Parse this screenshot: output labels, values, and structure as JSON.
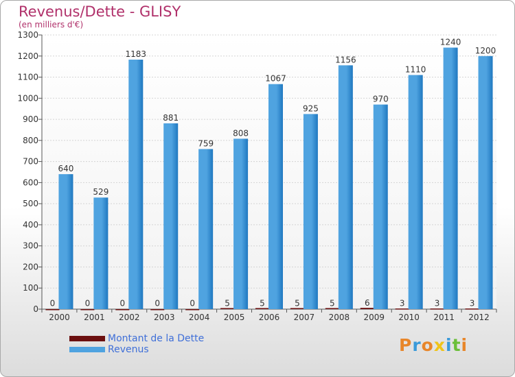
{
  "title": "Revenus/Dette - GLISY",
  "subtitle": "(en milliers d'€)",
  "brand": [
    "P",
    "r",
    "o",
    "x",
    "i",
    "t",
    "i"
  ],
  "brand_colors": [
    "#e8862a",
    "#3a9ad9",
    "#e8862a",
    "#f0c419",
    "#3a9ad9",
    "#6bbf3a",
    "#e8862a"
  ],
  "colors": {
    "debt": "#6b0f0f",
    "revenue": "#4fa3e0",
    "revenue_dark": "#1f78c0",
    "axis_text": "#333333",
    "legend_text": "#3f6fd8"
  },
  "chart_data": {
    "type": "bar",
    "title": "Revenus/Dette - GLISY",
    "subtitle": "(en milliers d'€)",
    "categories": [
      "2000",
      "2001",
      "2002",
      "2003",
      "2004",
      "2005",
      "2006",
      "2007",
      "2008",
      "2009",
      "2010",
      "2011",
      "2012"
    ],
    "series": [
      {
        "name": "Montant de la Dette",
        "values": [
          0,
          0,
          0,
          0,
          0,
          5,
          5,
          5,
          5,
          6,
          3,
          3,
          3
        ]
      },
      {
        "name": "Revenus",
        "values": [
          640,
          529,
          1183,
          881,
          759,
          808,
          1067,
          925,
          1156,
          970,
          1110,
          1240,
          1200
        ]
      }
    ],
    "ylim": [
      0,
      1300
    ],
    "yticks": [
      0,
      100,
      200,
      300,
      400,
      500,
      600,
      700,
      800,
      900,
      1000,
      1100,
      1200,
      1300
    ],
    "grid": true,
    "legend": "bottom-left"
  }
}
